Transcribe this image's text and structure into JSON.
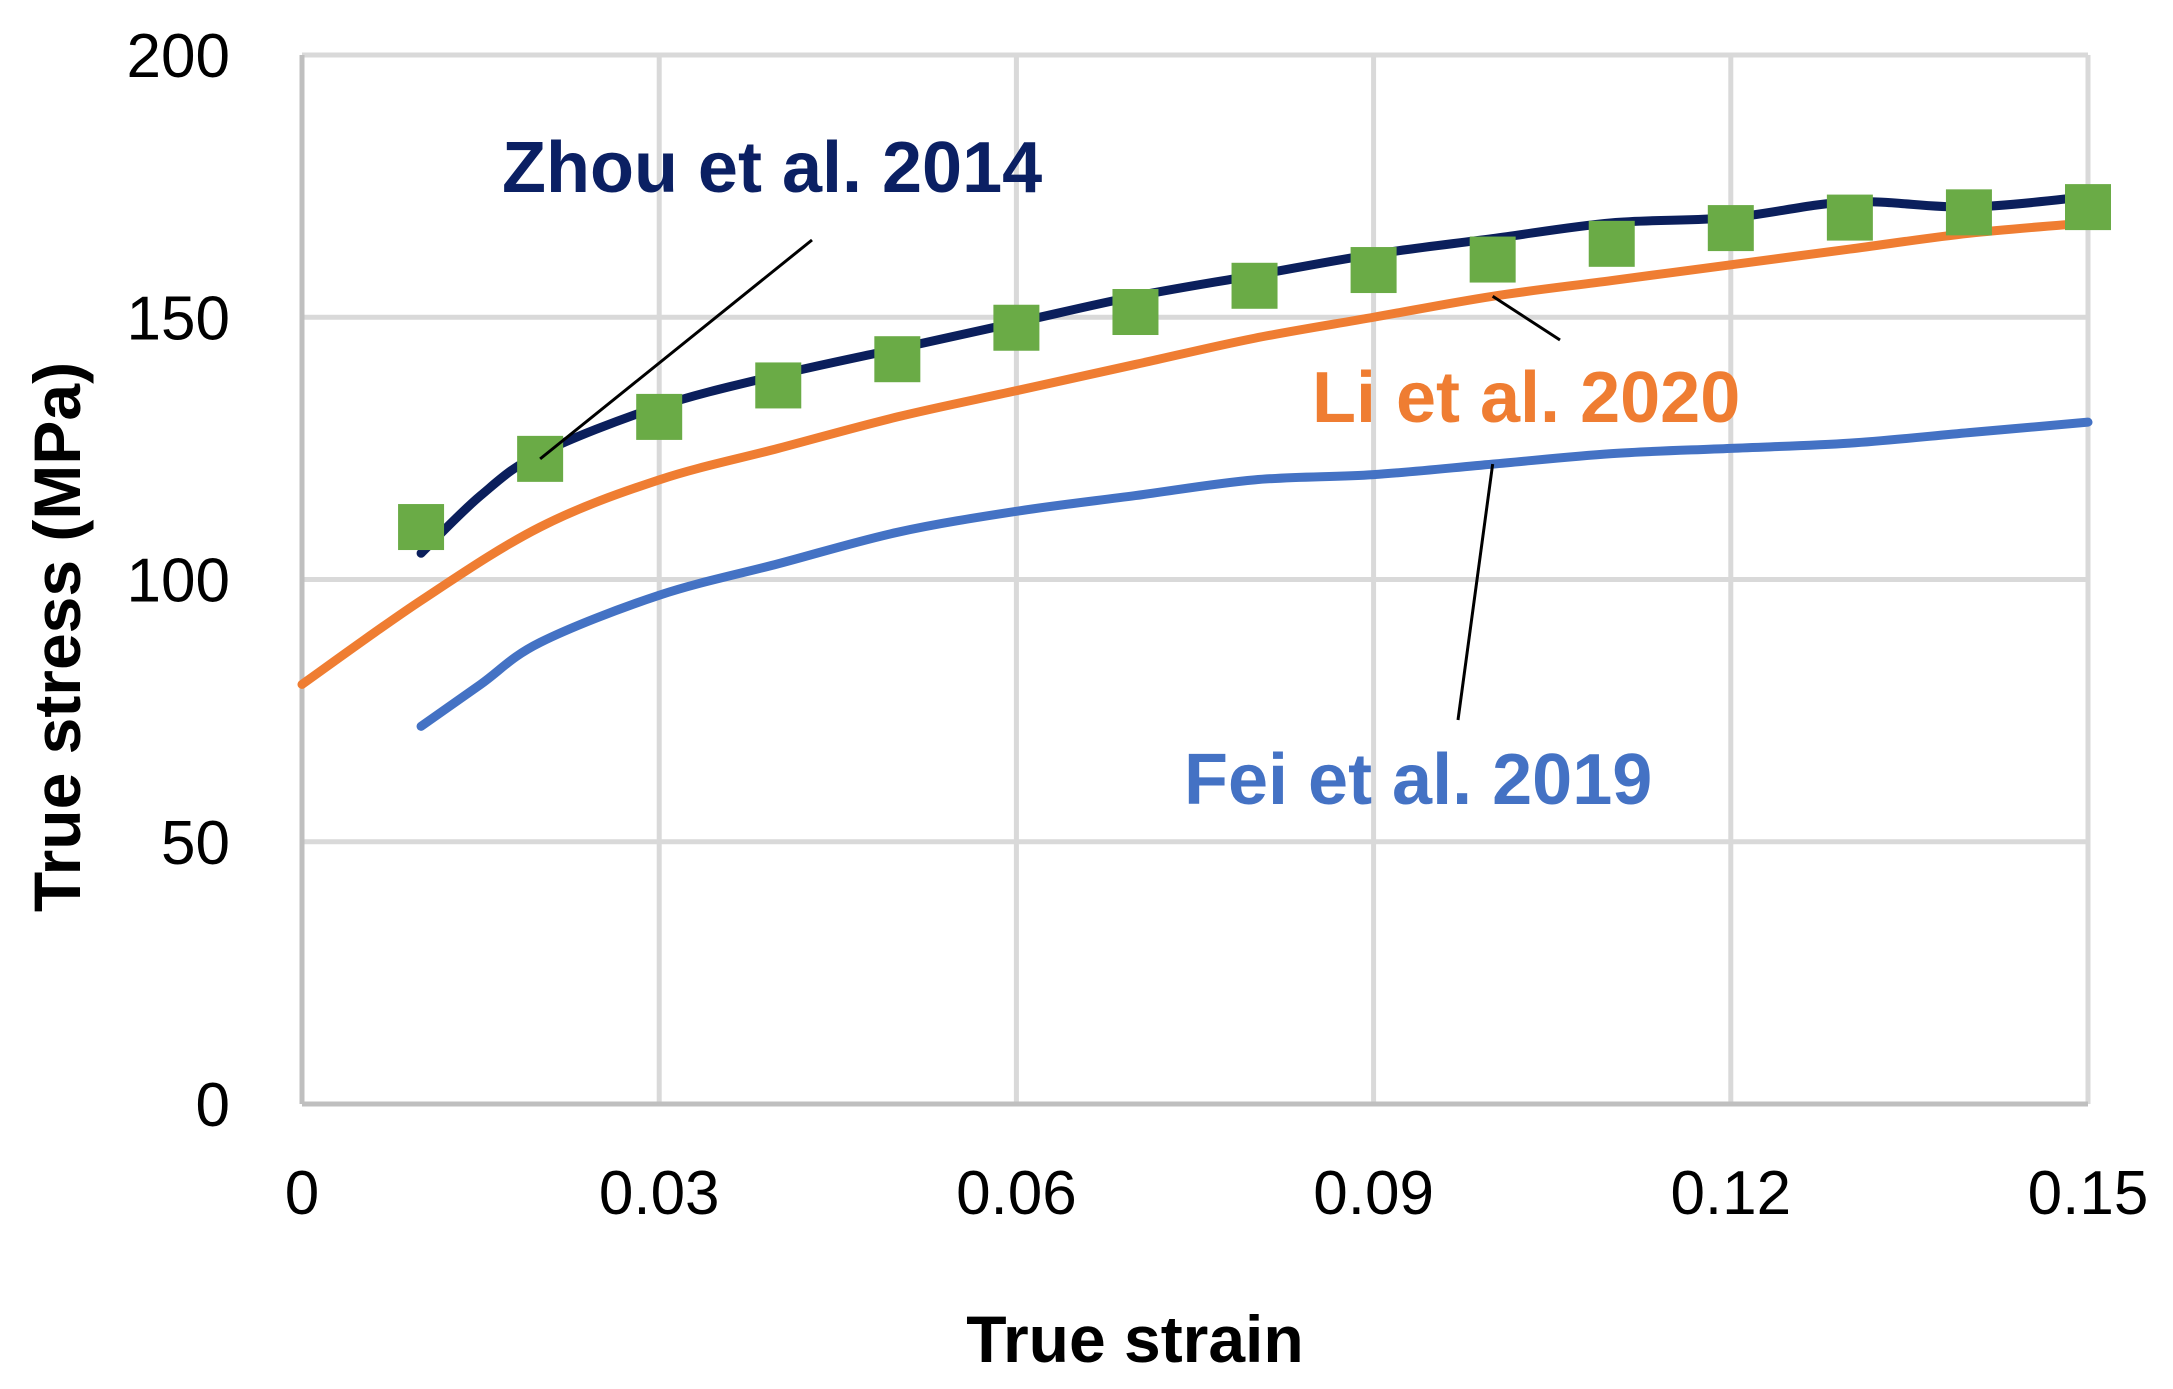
{
  "chart_data": {
    "type": "line",
    "xlabel": "True strain",
    "ylabel": "True stress (MPa)",
    "xlim": [
      0,
      0.15
    ],
    "ylim": [
      0,
      200
    ],
    "xticks": [
      "0",
      "0.03",
      "0.06",
      "0.09",
      "0.12",
      "0.15"
    ],
    "yticks": [
      "0",
      "50",
      "100",
      "150",
      "200"
    ],
    "grid": true,
    "legend": "inline labels",
    "series": [
      {
        "name": "Zhou et al. 2014",
        "style": "line",
        "color": "#0b1f5c",
        "x": [
          0.01,
          0.015,
          0.02,
          0.03,
          0.04,
          0.05,
          0.06,
          0.07,
          0.08,
          0.09,
          0.1,
          0.11,
          0.12,
          0.13,
          0.14,
          0.15
        ],
        "y": [
          105,
          116,
          124,
          133,
          139,
          144,
          149,
          154,
          158,
          162,
          165,
          168,
          169,
          172,
          171,
          173
        ]
      },
      {
        "name": "",
        "style": "markers",
        "color": "#6aab46",
        "x": [
          0.01,
          0.02,
          0.03,
          0.04,
          0.05,
          0.06,
          0.07,
          0.08,
          0.09,
          0.1,
          0.11,
          0.12,
          0.13,
          0.14,
          0.15
        ],
        "y": [
          110,
          123,
          131,
          137,
          142,
          148,
          151,
          156,
          159,
          161,
          164,
          167,
          169,
          170,
          171
        ]
      },
      {
        "name": "Li et al. 2020",
        "style": "line",
        "color": "#ef7d32",
        "x": [
          0,
          0.01,
          0.02,
          0.03,
          0.04,
          0.05,
          0.06,
          0.07,
          0.08,
          0.09,
          0.1,
          0.11,
          0.12,
          0.13,
          0.14,
          0.15
        ],
        "y": [
          80,
          96,
          110,
          119,
          125,
          131,
          136,
          141,
          146,
          150,
          154,
          157,
          160,
          163,
          166,
          168
        ]
      },
      {
        "name": "Fei et al. 2019",
        "style": "line",
        "color": "#4472c4",
        "x": [
          0.01,
          0.015,
          0.02,
          0.03,
          0.04,
          0.05,
          0.06,
          0.07,
          0.08,
          0.09,
          0.1,
          0.11,
          0.12,
          0.13,
          0.14,
          0.15
        ],
        "y": [
          72,
          80,
          88,
          97,
          103,
          109,
          113,
          116,
          119,
          120,
          122,
          124,
          125,
          126,
          128,
          130
        ]
      }
    ],
    "annotations": [
      {
        "text": "Zhou et al. 2014",
        "series": 0,
        "color": "#0b2063",
        "pointer_x": 0.02,
        "pointer_y": 123
      },
      {
        "text": "Li et al. 2020",
        "series": 2,
        "color": "#ef7d32",
        "pointer_x": 0.1,
        "pointer_y": 154
      },
      {
        "text": "Fei et al. 2019",
        "series": 3,
        "color": "#4472c4",
        "pointer_x": 0.1,
        "pointer_y": 122
      }
    ]
  }
}
